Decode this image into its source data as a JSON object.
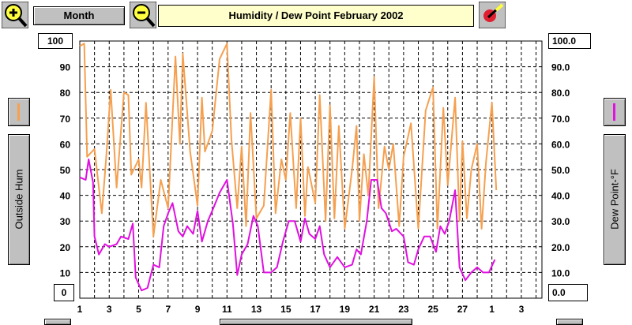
{
  "toolbar": {
    "zoom_in_icon": "plus-magnifier-icon",
    "zoom_out_icon": "minus-magnifier-icon",
    "period_label": "Month",
    "title": "Humidity  /  Dew Point    February 2002",
    "paint_icon": "paintbrush-icon"
  },
  "left_axis": {
    "top_value": "100",
    "bottom_value": "0",
    "label": "Outside Hum",
    "series_color": "#f5a050"
  },
  "right_axis": {
    "top_value": "100.0",
    "bottom_value": "0.0",
    "label": "Dew Point-°F",
    "series_color": "#e010e0"
  },
  "chart_data": {
    "type": "line",
    "x_ticks": [
      "1",
      "3",
      "5",
      "7",
      "9",
      "11",
      "13",
      "15",
      "17",
      "19",
      "21",
      "23",
      "25",
      "27",
      "1",
      "3"
    ],
    "y_left_ticks": [
      "10",
      "20",
      "30",
      "40",
      "50",
      "60",
      "70",
      "80",
      "90"
    ],
    "y_right_ticks": [
      "10.0",
      "20.0",
      "30.0",
      "40.0",
      "50.0",
      "60.0",
      "70.0",
      "80.0",
      "90.0"
    ],
    "ylim": [
      0,
      100
    ],
    "grid": true,
    "series": [
      {
        "color": "#f5a050",
        "axis": "left",
        "points": [
          [
            1,
            98
          ],
          [
            1.3,
            99
          ],
          [
            1.5,
            55
          ],
          [
            2,
            58
          ],
          [
            2.5,
            33
          ],
          [
            2.8,
            55
          ],
          [
            3.1,
            81
          ],
          [
            3.5,
            43
          ],
          [
            4,
            80
          ],
          [
            4.3,
            79
          ],
          [
            4.5,
            48
          ],
          [
            5,
            54
          ],
          [
            5.2,
            43
          ],
          [
            5.5,
            76
          ],
          [
            6,
            24
          ],
          [
            6.5,
            46
          ],
          [
            7,
            35
          ],
          [
            7.5,
            94
          ],
          [
            7.8,
            60
          ],
          [
            8,
            95
          ],
          [
            8.5,
            57
          ],
          [
            9,
            36
          ],
          [
            9.3,
            78
          ],
          [
            9.5,
            57
          ],
          [
            10,
            65
          ],
          [
            10.5,
            93
          ],
          [
            11,
            99
          ],
          [
            11.3,
            62
          ],
          [
            11.7,
            35
          ],
          [
            12,
            59
          ],
          [
            12.3,
            28
          ],
          [
            12.6,
            72
          ],
          [
            13,
            31
          ],
          [
            13.5,
            36
          ],
          [
            14,
            81
          ],
          [
            14.3,
            33
          ],
          [
            14.7,
            54
          ],
          [
            15,
            46
          ],
          [
            15.3,
            72
          ],
          [
            15.7,
            35
          ],
          [
            16,
            70
          ],
          [
            16.3,
            32
          ],
          [
            16.5,
            51
          ],
          [
            17,
            37
          ],
          [
            17.3,
            79
          ],
          [
            17.7,
            30
          ],
          [
            18,
            75
          ],
          [
            18.3,
            31
          ],
          [
            18.6,
            67
          ],
          [
            19,
            27
          ],
          [
            19.5,
            50
          ],
          [
            19.8,
            67
          ],
          [
            20,
            30
          ],
          [
            20.3,
            56
          ],
          [
            20.6,
            40
          ],
          [
            21,
            86
          ],
          [
            21.3,
            35
          ],
          [
            21.7,
            59
          ],
          [
            22,
            50
          ],
          [
            22.3,
            60
          ],
          [
            22.7,
            28
          ],
          [
            23,
            55
          ],
          [
            23.5,
            68
          ],
          [
            24,
            27
          ],
          [
            24.5,
            73
          ],
          [
            25,
            82
          ],
          [
            25.3,
            27
          ],
          [
            25.7,
            74
          ],
          [
            26,
            44
          ],
          [
            26.5,
            78
          ],
          [
            26.8,
            30
          ],
          [
            27,
            61
          ],
          [
            27.3,
            31
          ],
          [
            27.6,
            50
          ],
          [
            28,
            60
          ],
          [
            28.3,
            27
          ],
          [
            28.6,
            53
          ],
          [
            29,
            76
          ],
          [
            29.3,
            42
          ]
        ]
      },
      {
        "color": "#e010e0",
        "axis": "right",
        "points": [
          [
            1,
            47
          ],
          [
            1.4,
            46
          ],
          [
            1.6,
            54
          ],
          [
            1.9,
            45
          ],
          [
            2,
            24
          ],
          [
            2.3,
            17
          ],
          [
            2.7,
            21
          ],
          [
            3,
            20
          ],
          [
            3.5,
            21
          ],
          [
            3.8,
            24
          ],
          [
            4.3,
            23
          ],
          [
            4.6,
            29
          ],
          [
            4.8,
            8
          ],
          [
            5.2,
            3
          ],
          [
            5.6,
            4
          ],
          [
            6,
            13
          ],
          [
            6.4,
            12
          ],
          [
            6.7,
            28
          ],
          [
            7,
            33
          ],
          [
            7.3,
            37
          ],
          [
            7.7,
            26
          ],
          [
            8,
            24
          ],
          [
            8.3,
            28
          ],
          [
            8.7,
            25
          ],
          [
            9,
            34
          ],
          [
            9.3,
            22
          ],
          [
            9.7,
            30
          ],
          [
            10,
            34
          ],
          [
            10.5,
            41
          ],
          [
            11,
            46
          ],
          [
            11.4,
            29
          ],
          [
            11.7,
            9
          ],
          [
            12,
            17
          ],
          [
            12.4,
            21
          ],
          [
            12.8,
            32
          ],
          [
            13.1,
            28
          ],
          [
            13.5,
            10
          ],
          [
            14,
            10
          ],
          [
            14.4,
            12
          ],
          [
            14.8,
            22
          ],
          [
            15.2,
            30
          ],
          [
            15.6,
            30
          ],
          [
            16,
            22
          ],
          [
            16.3,
            31
          ],
          [
            16.6,
            25
          ],
          [
            17,
            23
          ],
          [
            17.3,
            28
          ],
          [
            17.6,
            17
          ],
          [
            18,
            12
          ],
          [
            18.5,
            16
          ],
          [
            19,
            12
          ],
          [
            19.5,
            13
          ],
          [
            19.8,
            19
          ],
          [
            20.1,
            17
          ],
          [
            20.5,
            30
          ],
          [
            20.8,
            46
          ],
          [
            21.2,
            46
          ],
          [
            21.5,
            35
          ],
          [
            21.8,
            33
          ],
          [
            22.2,
            26
          ],
          [
            22.5,
            27
          ],
          [
            23,
            24
          ],
          [
            23.3,
            14
          ],
          [
            23.7,
            13
          ],
          [
            24,
            19
          ],
          [
            24.4,
            24
          ],
          [
            24.8,
            24
          ],
          [
            25.2,
            18
          ],
          [
            25.5,
            28
          ],
          [
            25.8,
            25
          ],
          [
            26.1,
            30
          ],
          [
            26.5,
            42
          ],
          [
            26.8,
            12
          ],
          [
            27.2,
            7
          ],
          [
            27.6,
            10
          ],
          [
            28,
            12
          ],
          [
            28.4,
            10
          ],
          [
            28.8,
            10
          ],
          [
            29.2,
            15
          ]
        ]
      }
    ]
  }
}
